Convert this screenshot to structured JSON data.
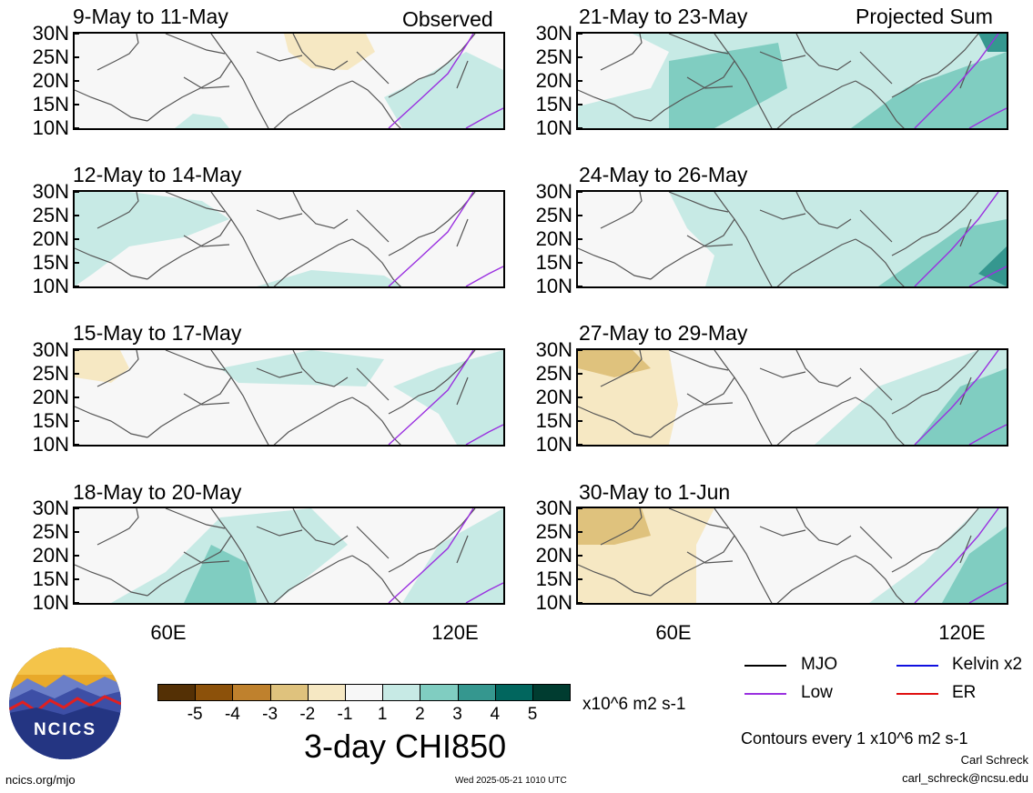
{
  "panels": [
    {
      "title": "9-May to 11-May",
      "tag": "Observed"
    },
    {
      "title": "12-May to 14-May",
      "tag": ""
    },
    {
      "title": "15-May to 17-May",
      "tag": ""
    },
    {
      "title": "18-May to 20-May",
      "tag": ""
    },
    {
      "title": "21-May to 23-May",
      "tag": "Projected Sum"
    },
    {
      "title": "24-May to 26-May",
      "tag": ""
    },
    {
      "title": "27-May to 29-May",
      "tag": ""
    },
    {
      "title": "30-May to 1-Jun",
      "tag": ""
    }
  ],
  "lat_labels": [
    "30N",
    "25N",
    "20N",
    "15N",
    "10N"
  ],
  "lon_labels": [
    "60E",
    "120E"
  ],
  "colorbar": {
    "colors": [
      "#543005",
      "#8c510a",
      "#bf812d",
      "#dfc27d",
      "#f6e8c3",
      "#f7f7f7",
      "#c7eae5",
      "#80cdc1",
      "#35978f",
      "#01665e",
      "#003c30"
    ],
    "labels": [
      "-5",
      "-4",
      "-3",
      "-2",
      "-1",
      "1",
      "2",
      "3",
      "4",
      "5"
    ],
    "units": "x10^6 m2 s-1"
  },
  "title": "3-day CHI850",
  "legend": {
    "items": [
      {
        "label": "MJO",
        "color": "#000000"
      },
      {
        "label": "Kelvin x2",
        "color": "#1010e0"
      },
      {
        "label": "Low",
        "color": "#9a30e0"
      },
      {
        "label": "ER",
        "color": "#e01010"
      }
    ]
  },
  "contour_note": "Contours every 1 x10^6 m2 s-1",
  "author": "Carl Schreck",
  "email": "carl_schreck@ncsu.edu",
  "site": "ncics.org/mjo",
  "timestamp": "Wed 2025-05-21 1010 UTC",
  "logo_text": "NCICS"
}
